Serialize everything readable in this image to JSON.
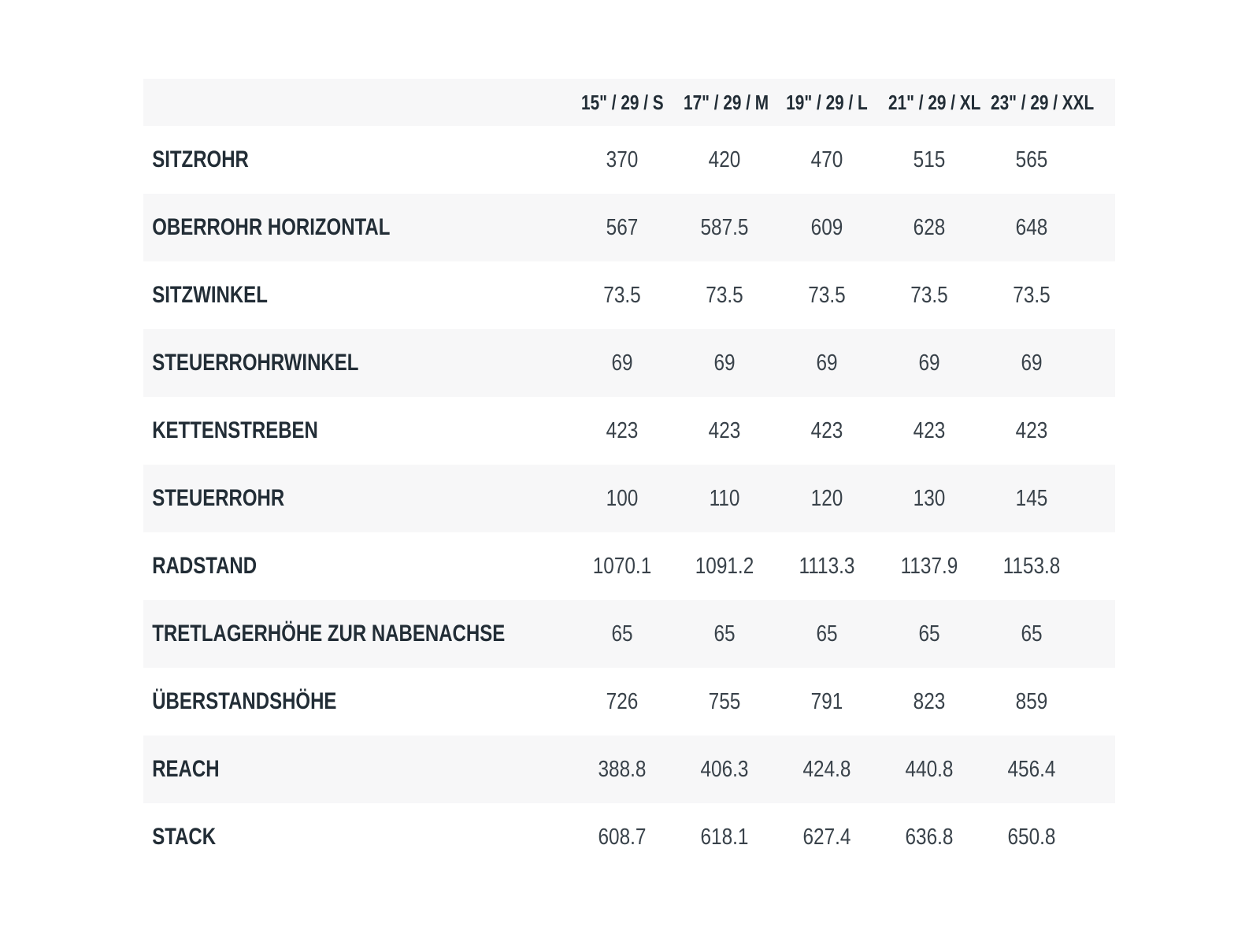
{
  "colors": {
    "stripe": "#f7f7f8",
    "label_text": "#222d36",
    "value_text": "#39424a",
    "background": "#ffffff"
  },
  "chart_data": {
    "type": "table",
    "title": "",
    "categories": [
      "15\" / 29 / S",
      "17\" / 29 / M",
      "19\" / 29 / L",
      "21\" / 29 / XL",
      "23\" / 29 / XXL"
    ],
    "series": [
      {
        "name": "SITZROHR",
        "values": [
          "370",
          "420",
          "470",
          "515",
          "565"
        ]
      },
      {
        "name": "OBERROHR HORIZONTAL",
        "values": [
          "567",
          "587.5",
          "609",
          "628",
          "648"
        ]
      },
      {
        "name": "SITZWINKEL",
        "values": [
          "73.5",
          "73.5",
          "73.5",
          "73.5",
          "73.5"
        ]
      },
      {
        "name": "STEUERROHRWINKEL",
        "values": [
          "69",
          "69",
          "69",
          "69",
          "69"
        ]
      },
      {
        "name": "KETTENSTREBEN",
        "values": [
          "423",
          "423",
          "423",
          "423",
          "423"
        ]
      },
      {
        "name": "STEUERROHR",
        "values": [
          "100",
          "110",
          "120",
          "130",
          "145"
        ]
      },
      {
        "name": "RADSTAND",
        "values": [
          "1070.1",
          "1091.2",
          "1113.3",
          "1137.9",
          "1153.8"
        ]
      },
      {
        "name": "TRETLAGERHÖHE ZUR NABENACHSE",
        "values": [
          "65",
          "65",
          "65",
          "65",
          "65"
        ]
      },
      {
        "name": "ÜBERSTANDSHÖHE",
        "values": [
          "726",
          "755",
          "791",
          "823",
          "859"
        ]
      },
      {
        "name": "REACH",
        "values": [
          "388.8",
          "406.3",
          "424.8",
          "440.8",
          "456.4"
        ]
      },
      {
        "name": "STACK",
        "values": [
          "608.7",
          "618.1",
          "627.4",
          "636.8",
          "650.8"
        ]
      }
    ],
    "layout": {
      "grid": false,
      "legend": "none",
      "striped_rows": true
    }
  }
}
